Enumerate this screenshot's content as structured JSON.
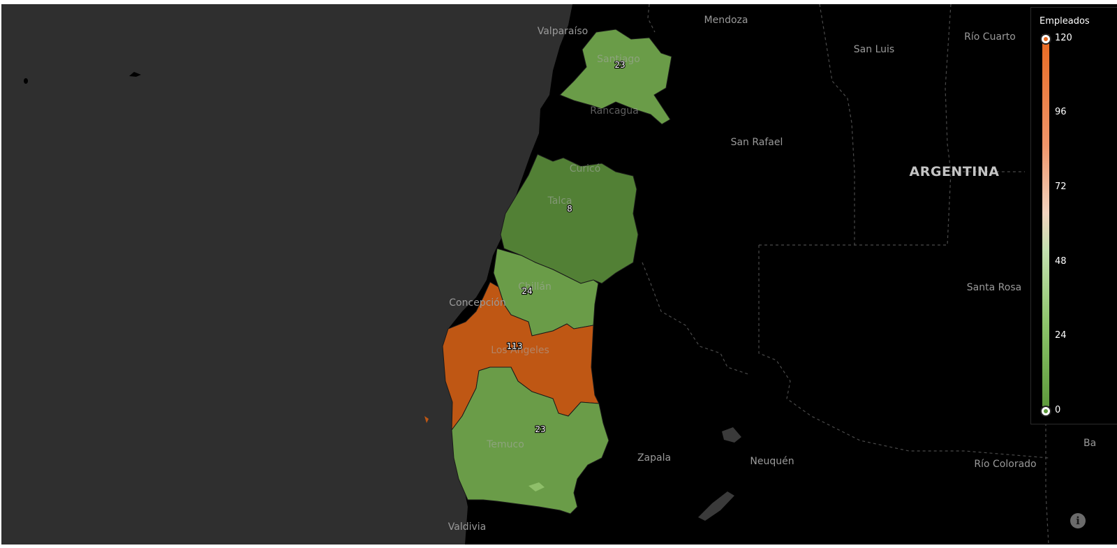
{
  "legend": {
    "title": "Empleados",
    "ticks": [
      "120",
      "96",
      "72",
      "48",
      "24",
      "0"
    ],
    "min": 0,
    "max": 120,
    "color_high": "#e8681f",
    "color_low": "#5e9a3c"
  },
  "regions": [
    {
      "id": "santiago",
      "value": "23",
      "color": "#6a9c48"
    },
    {
      "id": "maule",
      "value": "8",
      "color": "#528035"
    },
    {
      "id": "nuble",
      "value": "24",
      "color": "#6a9c48"
    },
    {
      "id": "biobio",
      "value": "113",
      "color": "#bf5714"
    },
    {
      "id": "araucania",
      "value": "23",
      "color": "#6a9c48"
    }
  ],
  "cities": {
    "valparaiso": "Valparaíso",
    "mendoza": "Mendoza",
    "santiago": "Santiago",
    "rancagua": "Rancagua",
    "san_rafael": "San Rafael",
    "curico": "Curicó",
    "talca": "Talca",
    "chillan": "Chillán",
    "concepcion": "Concepción",
    "los_angeles": "Los Ángeles",
    "temuco": "Temuco",
    "valdivia": "Valdivia",
    "zapala": "Zapala",
    "neuquen": "Neuquén",
    "rio_colorado": "Río Colorado",
    "santa_rosa": "Santa Rosa",
    "san_luis": "San Luis",
    "rio_cuarto": "Río Cuarto",
    "ba": "Ba"
  },
  "country": "ARGENTINA",
  "info_icon": "info-icon",
  "colors": {
    "ocean": "#2f2f2f",
    "land": "#000000"
  }
}
